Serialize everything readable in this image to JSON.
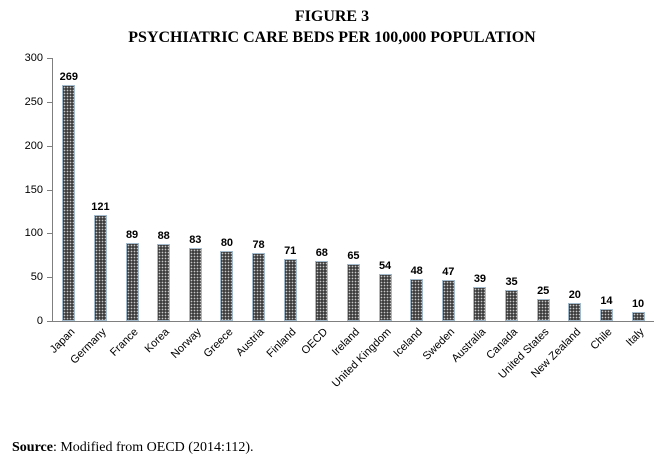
{
  "title": {
    "line1": "FIGURE 3",
    "line2": "PSYCHIATRIC CARE BEDS PER 100,000 POPULATION"
  },
  "source": {
    "label": "Source",
    "text": ": Modified from OECD (2014:112)."
  },
  "chart_data": {
    "type": "bar",
    "title": "PSYCHIATRIC CARE BEDS PER 100,000 POPULATION",
    "categories": [
      "Japan",
      "Germany",
      "France",
      "Korea",
      "Norway",
      "Greece",
      "Austria",
      "Finland",
      "OECD",
      "Ireland",
      "United Kingdom",
      "Iceland",
      "Sweden",
      "Australia",
      "Canada",
      "United States",
      "New Zealand",
      "Chile",
      "Italy"
    ],
    "values": [
      269,
      121,
      89,
      88,
      83,
      80,
      78,
      71,
      68,
      65,
      54,
      48,
      47,
      39,
      35,
      25,
      20,
      14,
      10
    ],
    "xlabel": "",
    "ylabel": "",
    "ylim": [
      0,
      300
    ],
    "y_ticks": [
      0,
      50,
      100,
      150,
      200,
      250,
      300
    ],
    "grid": false,
    "legend": false,
    "data_labels": true,
    "bar_fill": "#3f3f3f",
    "bar_border": "#a3bacd"
  }
}
